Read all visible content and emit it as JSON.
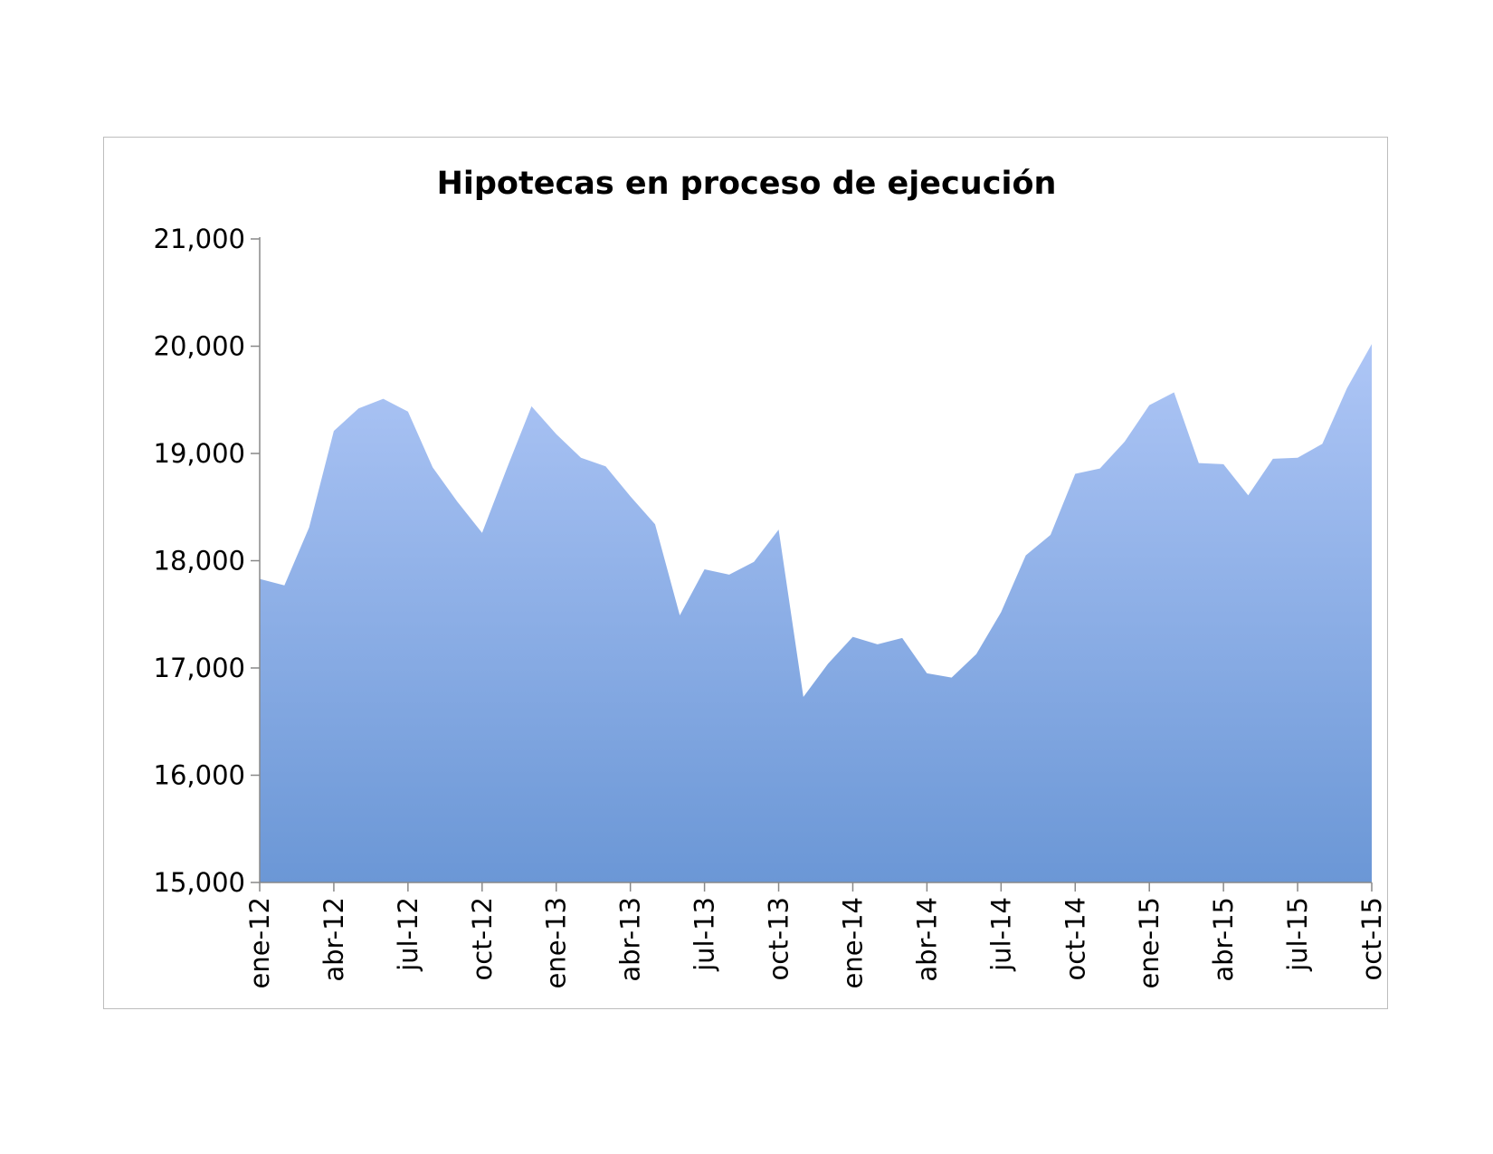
{
  "chart_data": {
    "type": "area",
    "title": "Hipotecas en proceso de ejecución",
    "xlabel": "",
    "ylabel": "",
    "ylim": [
      15000,
      21000
    ],
    "yticks": [
      15000,
      16000,
      17000,
      18000,
      19000,
      20000,
      21000
    ],
    "ytick_labels": [
      "15,000",
      "16,000",
      "17,000",
      "18,000",
      "19,000",
      "20,000",
      "21,000"
    ],
    "x": [
      "ene-12",
      "feb-12",
      "mar-12",
      "abr-12",
      "may-12",
      "jun-12",
      "jul-12",
      "ago-12",
      "sep-12",
      "oct-12",
      "nov-12",
      "dic-12",
      "ene-13",
      "feb-13",
      "mar-13",
      "abr-13",
      "may-13",
      "jun-13",
      "jul-13",
      "ago-13",
      "sep-13",
      "oct-13",
      "nov-13",
      "dic-13",
      "ene-14",
      "feb-14",
      "mar-14",
      "abr-14",
      "may-14",
      "jun-14",
      "jul-14",
      "ago-14",
      "sep-14",
      "oct-14",
      "nov-14",
      "dic-14",
      "ene-15",
      "feb-15",
      "mar-15",
      "abr-15",
      "may-15",
      "jun-15",
      "jul-15",
      "ago-15",
      "sep-15",
      "oct-15"
    ],
    "xtick_labels": [
      "ene-12",
      "abr-12",
      "jul-12",
      "oct-12",
      "ene-13",
      "abr-13",
      "jul-13",
      "oct-13",
      "ene-14",
      "abr-14",
      "jul-14",
      "oct-14",
      "ene-15",
      "abr-15",
      "jul-15",
      "oct-15"
    ],
    "series": [
      {
        "values": [
          17830,
          17770,
          18310,
          19210,
          19420,
          19510,
          19390,
          18870,
          18550,
          18260,
          18860,
          19440,
          19180,
          18960,
          18880,
          18600,
          18340,
          17490,
          17920,
          17870,
          17990,
          18290,
          16730,
          17040,
          17290,
          17220,
          17280,
          16950,
          16910,
          17130,
          17520,
          18050,
          18240,
          18810,
          18860,
          19110,
          19450,
          19570,
          18910,
          18900,
          18610,
          18950,
          18960,
          19090,
          19610,
          20020
        ]
      }
    ],
    "colors": {
      "fill_top": "#aec6f6",
      "fill_bottom": "#6b97d6",
      "axis": "#888888"
    },
    "grid": false,
    "legend": "none"
  }
}
